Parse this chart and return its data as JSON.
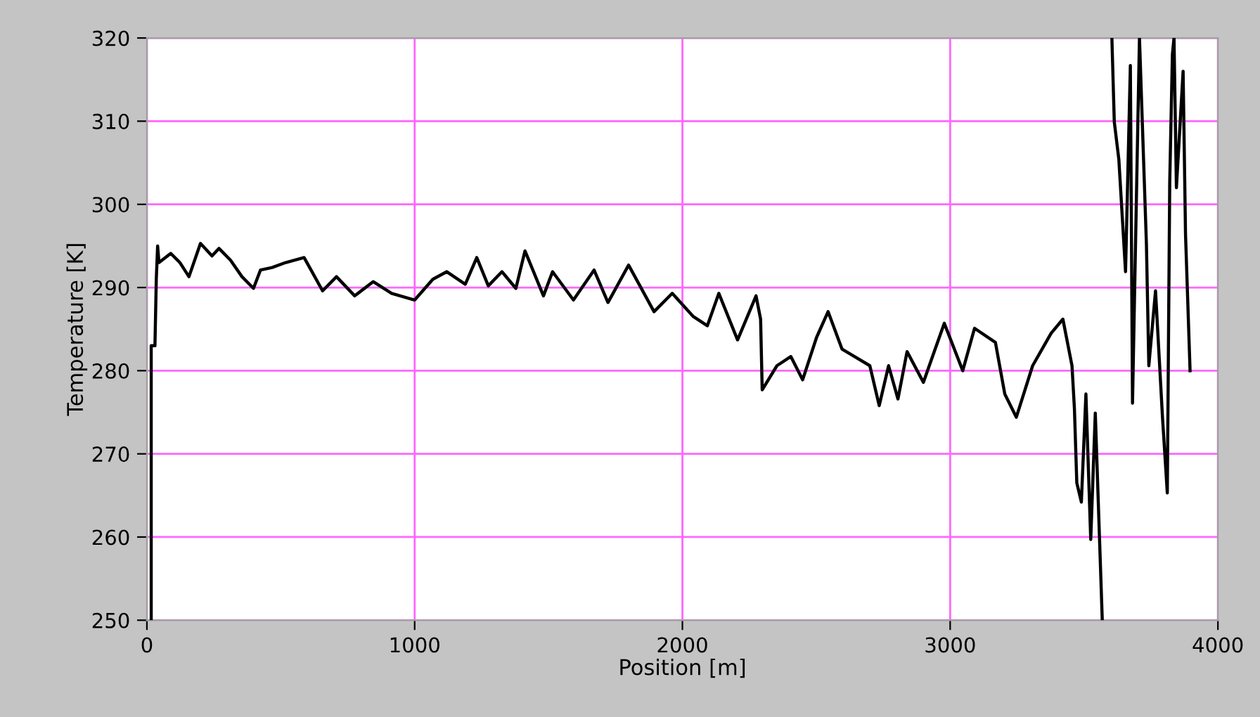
{
  "chart_data": {
    "type": "line",
    "xlabel": "Position [m]",
    "ylabel": "Temperature [K]",
    "xlim": [
      0,
      4000
    ],
    "xticks": [
      0,
      1000,
      2000,
      3000,
      4000
    ],
    "ylim": [
      250,
      320
    ],
    "yticks": [
      250,
      260,
      270,
      280,
      290,
      300,
      310,
      320
    ],
    "grid": true,
    "marker": "none",
    "line_style": "solid",
    "series": [
      {
        "color": "#000000",
        "x": [
          16,
          16,
          30,
          35,
          40,
          45,
          89,
          123,
          157,
          200,
          243,
          269,
          312,
          355,
          398,
          424,
          467,
          518,
          587,
          613,
          656,
          708,
          776,
          845,
          914,
          1000,
          1068,
          1120,
          1189,
          1232,
          1275,
          1326,
          1378,
          1412,
          1481,
          1515,
          1593,
          1670,
          1722,
          1799,
          1894,
          1962,
          2041,
          2093,
          2136,
          2206,
          2275,
          2292,
          2298,
          2353,
          2405,
          2449,
          2501,
          2544,
          2596,
          2700,
          2735,
          2770,
          2805,
          2839,
          2900,
          2978,
          3047,
          3091,
          3169,
          3204,
          3247,
          3308,
          3377,
          3421,
          3455,
          3464,
          3473,
          3490,
          3507,
          3525,
          3542,
          3568,
          3590,
          3604,
          3613,
          3630,
          3655,
          3673,
          3681,
          3707,
          3733,
          3742,
          3767,
          3793,
          3811,
          3820,
          3830,
          3836,
          3845,
          3870,
          3879,
          3896
        ],
        "values": [
          250,
          283,
          283,
          291,
          295,
          293,
          294.1,
          293,
          291.3,
          295.3,
          293.8,
          294.7,
          293.3,
          291.3,
          289.9,
          292.1,
          292.4,
          293,
          293.6,
          292.1,
          289.6,
          291.3,
          289,
          290.7,
          289.3,
          288.5,
          291,
          291.9,
          290.4,
          293.6,
          290.2,
          291.9,
          289.9,
          294.4,
          289,
          291.9,
          288.5,
          292.1,
          288.2,
          292.7,
          287.1,
          289.3,
          286.5,
          285.4,
          289.3,
          283.7,
          289,
          286.2,
          277.7,
          280.6,
          281.7,
          278.9,
          284,
          287.1,
          282.6,
          280.6,
          275.8,
          280.6,
          276.6,
          282.3,
          278.6,
          285.7,
          280,
          285.1,
          283.4,
          277.2,
          274.4,
          280.6,
          284.5,
          286.2,
          280.6,
          275.5,
          266.5,
          264.2,
          277.2,
          259.7,
          274.9,
          250.1,
          null,
          320,
          309.9,
          305.4,
          291.9,
          316.7,
          276.1,
          320,
          295.2,
          280.6,
          289.6,
          274.4,
          265.3,
          302.6,
          318,
          320,
          302,
          316,
          296.4,
          280
        ]
      }
    ]
  }
}
